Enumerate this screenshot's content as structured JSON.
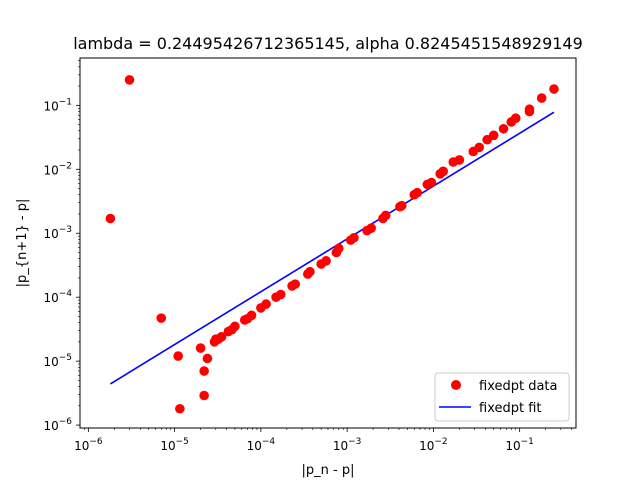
{
  "chart_data": {
    "type": "scatter",
    "title": "lambda = 0.24495426712365145, alpha 0.8245451548929149",
    "xlabel": "|p_n - p|",
    "ylabel": "|p_{n+1} - p|",
    "x_scale": "log",
    "y_scale": "log",
    "xlim": [
      8e-07,
      0.45
    ],
    "ylim": [
      9e-07,
      0.55
    ],
    "grid": false,
    "legend_position": "lower right",
    "x_ticks": [
      {
        "base": "10",
        "exp": "−6",
        "value": 1e-06
      },
      {
        "base": "10",
        "exp": "−5",
        "value": 1e-05
      },
      {
        "base": "10",
        "exp": "−4",
        "value": 0.0001
      },
      {
        "base": "10",
        "exp": "−3",
        "value": 0.001
      },
      {
        "base": "10",
        "exp": "−2",
        "value": 0.01
      },
      {
        "base": "10",
        "exp": "−1",
        "value": 0.1
      }
    ],
    "y_ticks": [
      {
        "base": "10",
        "exp": "−6",
        "value": 1e-06
      },
      {
        "base": "10",
        "exp": "−5",
        "value": 1e-05
      },
      {
        "base": "10",
        "exp": "−4",
        "value": 0.0001
      },
      {
        "base": "10",
        "exp": "−3",
        "value": 0.001
      },
      {
        "base": "10",
        "exp": "−2",
        "value": 0.01
      },
      {
        "base": "10",
        "exp": "−1",
        "value": 0.1
      }
    ],
    "series": [
      {
        "name": "fixedpt data",
        "style": "markers",
        "color": "#ff0000",
        "points": [
          [
            0.25,
            0.18
          ],
          [
            0.18,
            0.13
          ],
          [
            0.13,
            0.087
          ],
          [
            0.13,
            0.08
          ],
          [
            0.09,
            0.063
          ],
          [
            0.08,
            0.055
          ],
          [
            0.065,
            0.043
          ],
          [
            0.05,
            0.034
          ],
          [
            0.042,
            0.029
          ],
          [
            0.034,
            0.022
          ],
          [
            0.029,
            0.019
          ],
          [
            0.02,
            0.014
          ],
          [
            0.017,
            0.013
          ],
          [
            0.013,
            0.0093
          ],
          [
            0.012,
            0.0085
          ],
          [
            0.0095,
            0.0062
          ],
          [
            0.0085,
            0.0058
          ],
          [
            0.0065,
            0.0043
          ],
          [
            0.006,
            0.004
          ],
          [
            0.0043,
            0.0027
          ],
          [
            0.0041,
            0.0026
          ],
          [
            0.0028,
            0.0019
          ],
          [
            0.0026,
            0.0017
          ],
          [
            0.0019,
            0.0012
          ],
          [
            0.0017,
            0.0011
          ],
          [
            0.0012,
            0.00085
          ],
          [
            0.0011,
            0.00078
          ],
          [
            0.0008,
            0.00058
          ],
          [
            0.00075,
            0.0005
          ],
          [
            0.00057,
            0.00037
          ],
          [
            0.0005,
            0.00033
          ],
          [
            0.00037,
            0.00025
          ],
          [
            0.00035,
            0.00023
          ],
          [
            0.00025,
            0.00016
          ],
          [
            0.00023,
            0.00015
          ],
          [
            0.00017,
            0.00011
          ],
          [
            0.00015,
            0.0001
          ],
          [
            0.000115,
            7.8e-05
          ],
          [
            0.0001,
            6.8e-05
          ],
          [
            7.8e-05,
            5.2e-05
          ],
          [
            7e-05,
            4.6e-05
          ],
          [
            6.5e-05,
            4.4e-05
          ],
          [
            5e-05,
            3.5e-05
          ],
          [
            4.6e-05,
            3.1e-05
          ],
          [
            4.2e-05,
            2.9e-05
          ],
          [
            3.5e-05,
            2.4e-05
          ],
          [
            3.2e-05,
            2.2e-05
          ],
          [
            3e-05,
            2.2e-05
          ],
          [
            2.9e-05,
            2e-05
          ],
          [
            2e-05,
            1.6e-05
          ],
          [
            2.4e-05,
            1.1e-05
          ],
          [
            2.2e-05,
            7e-06
          ],
          [
            2.2e-05,
            2.9e-06
          ],
          [
            1.1e-05,
            1.2e-05
          ],
          [
            1.15e-05,
            1.8e-06
          ],
          [
            7e-06,
            4.7e-05
          ],
          [
            3e-06,
            0.25
          ],
          [
            1.8e-06,
            0.0017
          ]
        ]
      },
      {
        "name": "fixedpt fit",
        "style": "line",
        "color": "#0000ff",
        "points": [
          [
            1.8e-06,
            4.4e-06
          ],
          [
            0.25,
            0.078
          ]
        ]
      }
    ]
  }
}
